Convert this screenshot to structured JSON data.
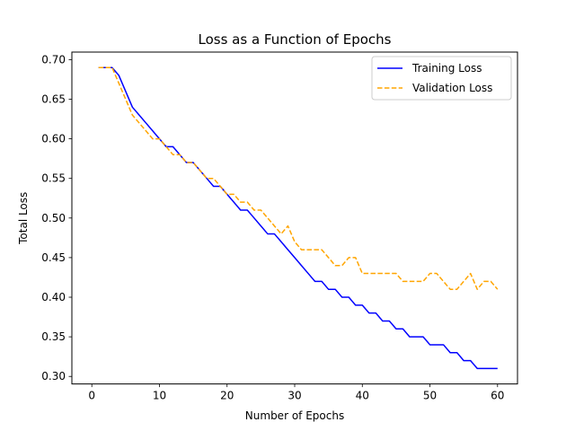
{
  "chart_data": {
    "type": "line",
    "title": "Loss as a Function of Epochs",
    "xlabel": "Number of Epochs",
    "ylabel": "Total Loss",
    "xlim": [
      -2.95,
      62.95
    ],
    "ylim": [
      0.2905,
      0.7095
    ],
    "xticks": [
      0,
      10,
      20,
      30,
      40,
      50,
      60
    ],
    "yticks": [
      0.3,
      0.35,
      0.4,
      0.45,
      0.5,
      0.55,
      0.6,
      0.65,
      0.7
    ],
    "ytick_labels": [
      "0.30",
      "0.35",
      "0.40",
      "0.45",
      "0.50",
      "0.55",
      "0.60",
      "0.65",
      "0.70"
    ],
    "grid": false,
    "legend_position": "top-right",
    "x": [
      1,
      2,
      3,
      4,
      5,
      6,
      7,
      8,
      9,
      10,
      11,
      12,
      13,
      14,
      15,
      16,
      17,
      18,
      19,
      20,
      21,
      22,
      23,
      24,
      25,
      26,
      27,
      28,
      29,
      30,
      31,
      32,
      33,
      34,
      35,
      36,
      37,
      38,
      39,
      40,
      41,
      42,
      43,
      44,
      45,
      46,
      47,
      48,
      49,
      50,
      51,
      52,
      53,
      54,
      55,
      56,
      57,
      58,
      59,
      60
    ],
    "series": [
      {
        "name": "Training Loss",
        "color": "#0000ff",
        "dash": "solid",
        "values": [
          0.69,
          0.69,
          0.69,
          0.68,
          0.66,
          0.64,
          0.63,
          0.62,
          0.61,
          0.6,
          0.59,
          0.59,
          0.58,
          0.57,
          0.57,
          0.56,
          0.55,
          0.54,
          0.54,
          0.53,
          0.52,
          0.51,
          0.51,
          0.5,
          0.49,
          0.48,
          0.48,
          0.47,
          0.46,
          0.45,
          0.44,
          0.43,
          0.42,
          0.42,
          0.41,
          0.41,
          0.4,
          0.4,
          0.39,
          0.39,
          0.38,
          0.38,
          0.37,
          0.37,
          0.36,
          0.36,
          0.35,
          0.35,
          0.35,
          0.34,
          0.34,
          0.34,
          0.33,
          0.33,
          0.32,
          0.32,
          0.31,
          0.31,
          0.31,
          0.31
        ]
      },
      {
        "name": "Validation Loss",
        "color": "#ffa500",
        "dash": "dashed",
        "values": [
          0.69,
          0.69,
          0.69,
          0.67,
          0.65,
          0.63,
          0.62,
          0.61,
          0.6,
          0.6,
          0.59,
          0.58,
          0.58,
          0.57,
          0.57,
          0.56,
          0.55,
          0.55,
          0.54,
          0.53,
          0.53,
          0.52,
          0.52,
          0.51,
          0.51,
          0.5,
          0.49,
          0.48,
          0.49,
          0.47,
          0.46,
          0.46,
          0.46,
          0.46,
          0.45,
          0.44,
          0.44,
          0.45,
          0.45,
          0.43,
          0.43,
          0.43,
          0.43,
          0.43,
          0.43,
          0.42,
          0.42,
          0.42,
          0.42,
          0.43,
          0.43,
          0.42,
          0.41,
          0.41,
          0.42,
          0.43,
          0.41,
          0.42,
          0.42,
          0.41
        ]
      }
    ]
  }
}
